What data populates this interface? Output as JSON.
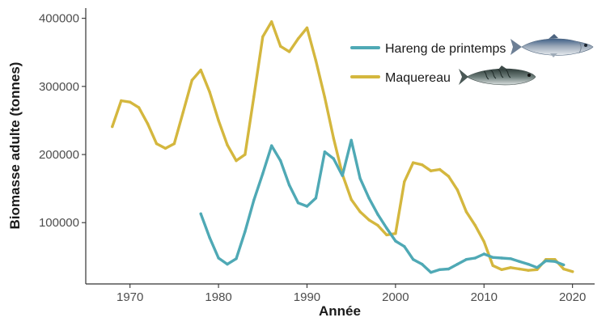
{
  "chart_data": {
    "type": "line",
    "xlabel": "Année",
    "ylabel": "Biomasse adulte (tonnes)",
    "xlim": [
      1965,
      2022.5
    ],
    "ylim": [
      10000,
      415000
    ],
    "x_ticks": [
      1970,
      1980,
      1990,
      2000,
      2010,
      2020
    ],
    "y_ticks": [
      100000,
      200000,
      300000,
      400000
    ],
    "x_tick_labels": [
      "1970",
      "1980",
      "1990",
      "2000",
      "2010",
      "2020"
    ],
    "y_tick_labels": [
      "100000",
      "200000",
      "300000",
      "400000"
    ],
    "grid": false,
    "legend_position": "top-right",
    "series": [
      {
        "name": "Hareng de printemps",
        "color": "#4fa9b5",
        "icon": "herring-fish-icon",
        "x": [
          1978,
          1979,
          1980,
          1981,
          1982,
          1983,
          1984,
          1985,
          1986,
          1987,
          1988,
          1989,
          1990,
          1991,
          1992,
          1993,
          1994,
          1995,
          1996,
          1997,
          1998,
          1999,
          2000,
          2001,
          2002,
          2003,
          2004,
          2005,
          2006,
          2007,
          2008,
          2009,
          2010,
          2011,
          2012,
          2013,
          2014,
          2015,
          2016,
          2017,
          2018,
          2019
        ],
        "values": [
          113000,
          78000,
          48000,
          39000,
          47000,
          87000,
          133000,
          172000,
          213000,
          191000,
          155000,
          129000,
          124000,
          136000,
          204000,
          194000,
          169000,
          221000,
          165000,
          136000,
          112000,
          92000,
          73000,
          65000,
          46000,
          39000,
          27000,
          31000,
          32000,
          39000,
          46000,
          48000,
          54000,
          49000,
          48000,
          47000,
          43000,
          39000,
          34000,
          44000,
          43000,
          38000
        ]
      },
      {
        "name": "Maquereau",
        "color": "#d4b73e",
        "icon": "mackerel-fish-icon",
        "x": [
          1968,
          1969,
          1970,
          1971,
          1972,
          1973,
          1974,
          1975,
          1976,
          1977,
          1978,
          1979,
          1980,
          1981,
          1982,
          1983,
          1984,
          1985,
          1986,
          1987,
          1988,
          1989,
          1990,
          1991,
          1992,
          1993,
          1994,
          1995,
          1996,
          1997,
          1998,
          1999,
          2000,
          2001,
          2002,
          2003,
          2004,
          2005,
          2006,
          2007,
          2008,
          2009,
          2010,
          2011,
          2012,
          2013,
          2014,
          2015,
          2016,
          2017,
          2018,
          2019,
          2020
        ],
        "values": [
          241000,
          279000,
          277000,
          269000,
          245000,
          216000,
          209000,
          216000,
          262000,
          309000,
          324000,
          292000,
          250000,
          214000,
          191000,
          200000,
          285000,
          373000,
          395000,
          359000,
          351000,
          370000,
          386000,
          338000,
          284000,
          224000,
          171000,
          134000,
          116000,
          104000,
          96000,
          82000,
          84000,
          160000,
          188000,
          185000,
          176000,
          178000,
          168000,
          148000,
          116000,
          96000,
          72000,
          37000,
          31000,
          34000,
          32000,
          30000,
          31000,
          46000,
          46000,
          32000,
          28000
        ]
      }
    ]
  }
}
